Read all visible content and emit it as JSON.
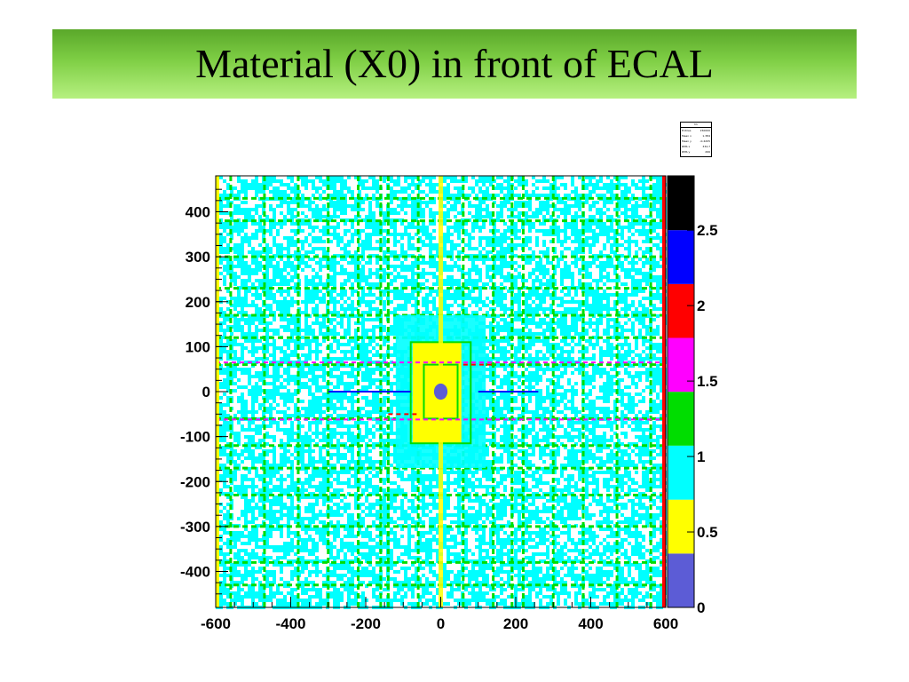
{
  "slide": {
    "title": "Material (X0) in front of ECAL",
    "banner_colors": [
      "#5aa82a",
      "#7fcf45",
      "#b6f080"
    ]
  },
  "stats_box": {
    "header": "h1",
    "rows": [
      {
        "label": "Entries",
        "value": "150000"
      },
      {
        "label": "Mean x",
        "value": "1.384"
      },
      {
        "label": "Mean y",
        "value": "-0.4205"
      },
      {
        "label": "RMS x",
        "value": "334.7"
      },
      {
        "label": "RMS y",
        "value": "266"
      }
    ]
  },
  "chart_data": {
    "type": "heatmap",
    "title": "",
    "xlabel": "",
    "ylabel": "",
    "xlim": [
      -600,
      600
    ],
    "ylim": [
      -480,
      480
    ],
    "x_ticks": [
      -600,
      -400,
      -200,
      0,
      200,
      400,
      600
    ],
    "y_ticks": [
      -400,
      -300,
      -200,
      -100,
      0,
      100,
      200,
      300,
      400
    ],
    "z_range": [
      0,
      2.86
    ],
    "palette_bands": [
      {
        "from": 0.0,
        "to": 0.357,
        "color": "#5c5cd6"
      },
      {
        "from": 0.357,
        "to": 0.714,
        "color": "#ffff00"
      },
      {
        "from": 0.714,
        "to": 1.072,
        "color": "#00ffff"
      },
      {
        "from": 1.072,
        "to": 1.429,
        "color": "#00dd00"
      },
      {
        "from": 1.429,
        "to": 1.786,
        "color": "#ff00ff"
      },
      {
        "from": 1.786,
        "to": 2.143,
        "color": "#ff0000"
      },
      {
        "from": 2.143,
        "to": 2.5,
        "color": "#0000ff"
      },
      {
        "from": 2.5,
        "to": 2.86,
        "color": "#000000"
      }
    ],
    "z_labels": [
      {
        "value": 0,
        "text": "0"
      },
      {
        "value": 0.5,
        "text": "0.5"
      },
      {
        "value": 1,
        "text": "1"
      },
      {
        "value": 1.5,
        "text": "1.5"
      },
      {
        "value": 2,
        "text": "2"
      },
      {
        "value": 2.5,
        "text": "2.5"
      }
    ],
    "regions": [
      {
        "name": "background-scatter",
        "x": [
          -600,
          600
        ],
        "y": [
          -480,
          480
        ],
        "value": 0.85
      },
      {
        "name": "central-yellow-square",
        "x": [
          -75,
          55
        ],
        "y": [
          -115,
          110
        ],
        "value": 0.6
      },
      {
        "name": "beam-hole",
        "x": [
          -18,
          18
        ],
        "y": [
          -18,
          18
        ],
        "value": 0.15
      },
      {
        "name": "vertical-yellow-stripe",
        "x": [
          -6,
          6
        ],
        "y": [
          -480,
          480
        ],
        "value": 0.6
      }
    ],
    "green_lines": {
      "x": [
        -560,
        -470,
        -380,
        -300,
        -220,
        -160,
        -140,
        -60,
        60,
        140,
        190,
        220,
        300,
        380,
        470,
        560
      ],
      "y": [
        -430,
        -380,
        -300,
        -230,
        -170,
        -120,
        -60,
        60,
        120,
        170,
        230,
        300,
        380,
        430
      ]
    },
    "magenta_segments": [
      {
        "x": [
          -600,
          600
        ],
        "y": [
          -62,
          -62
        ],
        "value": 1.6
      },
      {
        "x": [
          -600,
          600
        ],
        "y": [
          65,
          65
        ],
        "value": 1.6
      },
      {
        "x": [
          -300,
          -80
        ],
        "y": [
          0,
          0
        ],
        "value": 2.3
      },
      {
        "x": [
          100,
          260
        ],
        "y": [
          0,
          0
        ],
        "value": 2.3
      },
      {
        "x": [
          60,
          140
        ],
        "y": [
          60,
          60
        ],
        "value": 2.0
      },
      {
        "x": [
          -140,
          -60
        ],
        "y": [
          -50,
          -50
        ],
        "value": 2.0
      }
    ]
  }
}
